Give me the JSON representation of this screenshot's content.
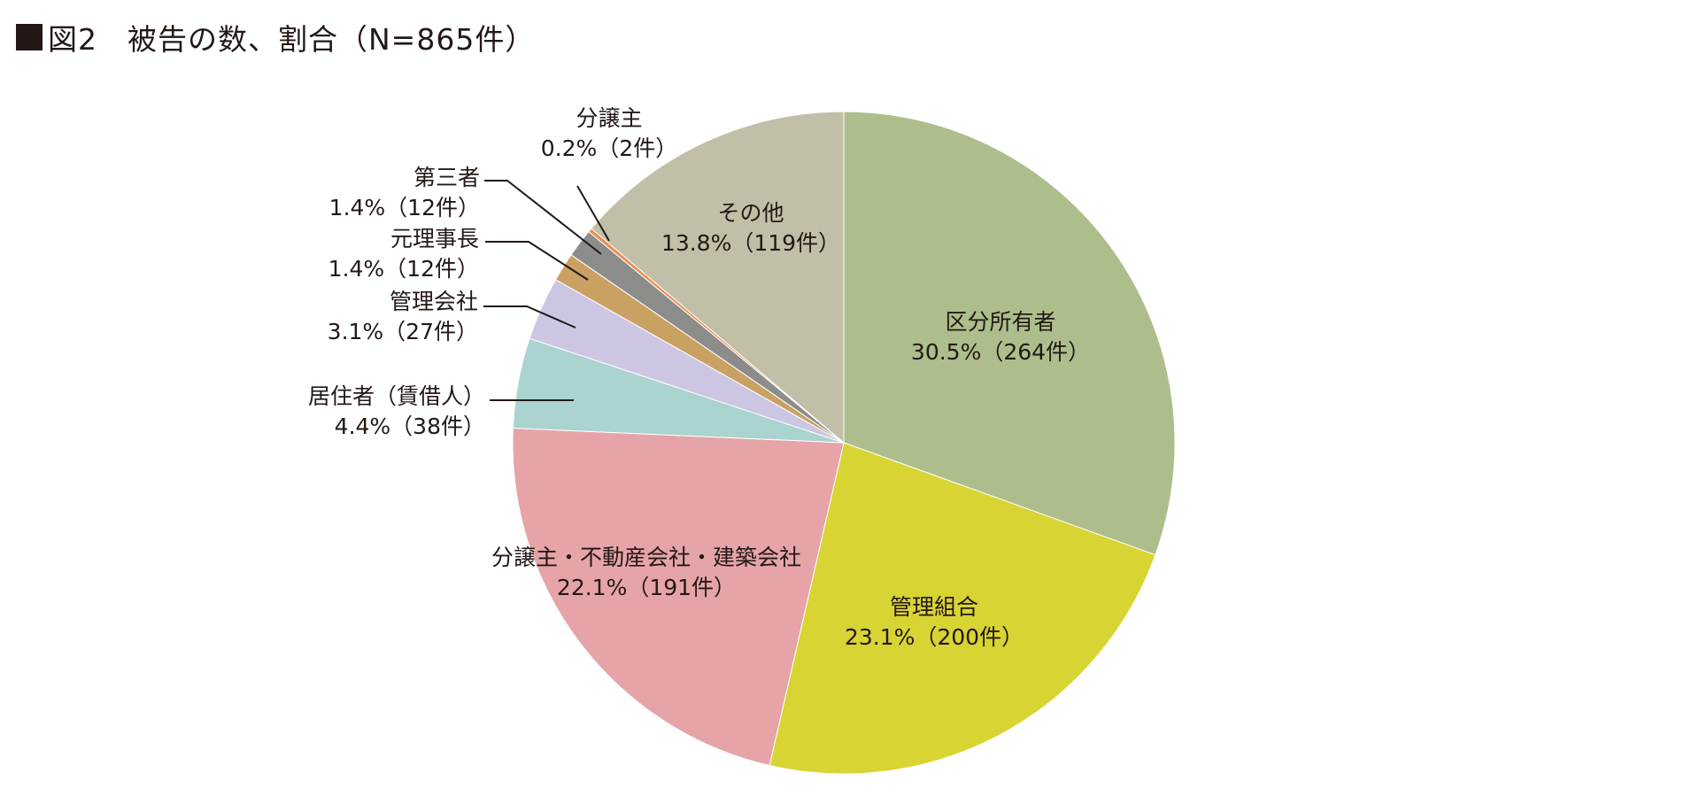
{
  "title": "図2　被告の数、割合（N=865件）",
  "chart_data": {
    "type": "pie",
    "title": "図2　被告の数、割合（N=865件）",
    "total": 865,
    "start": "12 o'clock, clockwise",
    "slices": [
      {
        "name": "区分所有者",
        "percent": 30.5,
        "count": 264,
        "value_label": "30.5%（264件）",
        "color": "#adbe8c"
      },
      {
        "name": "管理組合",
        "percent": 23.1,
        "count": 200,
        "value_label": "23.1%（200件）",
        "color": "#d8d434"
      },
      {
        "name": "分譲主・不動産会社・建築会社",
        "percent": 22.1,
        "count": 191,
        "value_label": "22.1%（191件）",
        "color": "#e6a4a8"
      },
      {
        "name": "居住者（賃借人）",
        "percent": 4.4,
        "count": 38,
        "value_label": "4.4%（38件）",
        "color": "#abd3cf"
      },
      {
        "name": "管理会社",
        "percent": 3.1,
        "count": 27,
        "value_label": "3.1%（27件）",
        "color": "#cdc6e3"
      },
      {
        "name": "元理事長",
        "percent": 1.4,
        "count": 12,
        "value_label": "1.4%（12件）",
        "color": "#c9a163"
      },
      {
        "name": "第三者",
        "percent": 1.4,
        "count": 12,
        "value_label": "1.4%（12件）",
        "color": "#8c8c8a"
      },
      {
        "name": "分譲主",
        "percent": 0.2,
        "count": 2,
        "value_label": "0.2%（2件）",
        "color": "#ea9053"
      },
      {
        "name": "その他",
        "percent": 13.8,
        "count": 119,
        "value_label": "13.8%（119件）",
        "color": "#c1bfa7"
      }
    ]
  }
}
